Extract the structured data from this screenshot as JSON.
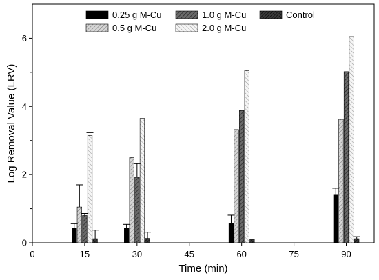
{
  "chart_data": {
    "type": "bar",
    "title": "",
    "xlabel": "Time (min)",
    "ylabel": "Log Removal Value (LRV)",
    "x_ticks": [
      0,
      15,
      30,
      45,
      60,
      75,
      90
    ],
    "y_ticks": [
      0,
      2,
      4,
      6
    ],
    "xlim": [
      0,
      98
    ],
    "ylim": [
      0,
      7
    ],
    "grid": false,
    "legend_position": "top",
    "x": [
      15,
      30,
      60,
      90
    ],
    "series": [
      {
        "name": "0.25 g M-Cu",
        "values": [
          0.42,
          0.42,
          0.56,
          1.4
        ],
        "errors": [
          0.14,
          0.12,
          0.25,
          0.2
        ],
        "fill": "#000000",
        "pattern": "solid"
      },
      {
        "name": "0.5 g M-Cu",
        "values": [
          1.05,
          2.5,
          3.32,
          3.62
        ],
        "errors": [
          0.65,
          0.0,
          0.0,
          0.0
        ],
        "fill": "#cfcfcf",
        "pattern": "hatch-light"
      },
      {
        "name": "1.0 g M-Cu",
        "values": [
          0.8,
          1.92,
          3.88,
          5.02
        ],
        "errors": [
          0.06,
          0.4,
          0.0,
          0.0
        ],
        "fill": "#5a5a5a",
        "pattern": "hatch-dark"
      },
      {
        "name": "2.0 g M-Cu",
        "values": [
          3.15,
          3.65,
          5.05,
          6.05
        ],
        "errors": [
          0.08,
          0.0,
          0.0,
          0.0
        ],
        "fill": "#f2f2f2",
        "pattern": "hatch-white"
      },
      {
        "name": "Control",
        "values": [
          0.12,
          0.13,
          0.1,
          0.12
        ],
        "errors": [
          0.25,
          0.18,
          0.0,
          0.06
        ],
        "fill": "#333333",
        "pattern": "hatch-black"
      }
    ]
  }
}
